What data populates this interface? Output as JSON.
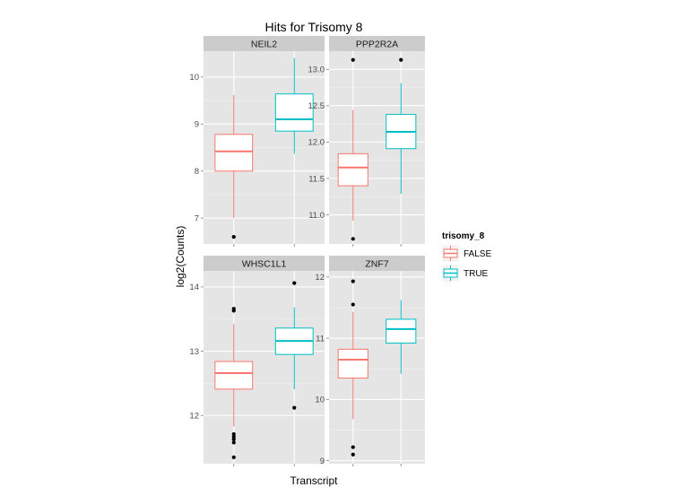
{
  "chart_data": {
    "type": "boxplot",
    "title": "Hits for Trisomy 8",
    "xlabel": "Transcript",
    "ylabel": "log2(Counts)",
    "legend": {
      "title": "trisomy_8",
      "position": "right",
      "entries": [
        {
          "label": "FALSE",
          "color": "#F8766D"
        },
        {
          "label": "TRUE",
          "color": "#00BFC4"
        }
      ]
    },
    "colors": {
      "FALSE": "#F8766D",
      "TRUE": "#00BFC4",
      "panel_bg": "#E5E5E5",
      "strip_bg": "#CCCCCC"
    },
    "grid": true,
    "panels": [
      {
        "name": "NEIL2",
        "ylim": [
          6.45,
          10.55
        ],
        "yticks": [
          7,
          8,
          9,
          10
        ],
        "ytick_labels": [
          "7",
          "8",
          "9",
          "10"
        ],
        "boxes": [
          {
            "group": "FALSE",
            "whisker_low": 7.0,
            "q1": 8.0,
            "median": 8.42,
            "q3": 8.78,
            "whisker_high": 9.62,
            "outliers": [
              6.6
            ]
          },
          {
            "group": "TRUE",
            "whisker_low": 8.37,
            "q1": 8.85,
            "median": 9.1,
            "q3": 9.64,
            "whisker_high": 10.4,
            "outliers": []
          }
        ]
      },
      {
        "name": "PPP2R2A",
        "ylim": [
          10.6,
          13.25
        ],
        "yticks": [
          11.0,
          11.5,
          12.0,
          12.5,
          13.0
        ],
        "ytick_labels": [
          "11.0",
          "11.5",
          "12.0",
          "12.5",
          "13.0"
        ],
        "boxes": [
          {
            "group": "FALSE",
            "whisker_low": 10.92,
            "q1": 11.4,
            "median": 11.65,
            "q3": 11.84,
            "whisker_high": 12.44,
            "outliers": [
              10.67,
              13.13
            ]
          },
          {
            "group": "TRUE",
            "whisker_low": 11.29,
            "q1": 11.91,
            "median": 12.14,
            "q3": 12.38,
            "whisker_high": 12.81,
            "outliers": [
              13.13
            ]
          }
        ]
      },
      {
        "name": "WHSC1L1",
        "ylim": [
          11.25,
          14.25
        ],
        "yticks": [
          12,
          13,
          14
        ],
        "ytick_labels": [
          "12",
          "13",
          "14"
        ],
        "boxes": [
          {
            "group": "FALSE",
            "whisker_low": 11.83,
            "q1": 12.41,
            "median": 12.66,
            "q3": 12.84,
            "whisker_high": 13.42,
            "outliers": [
              11.35,
              11.58,
              11.63,
              11.67,
              11.71,
              13.63,
              13.66
            ]
          },
          {
            "group": "TRUE",
            "whisker_low": 12.41,
            "q1": 12.95,
            "median": 13.16,
            "q3": 13.36,
            "whisker_high": 13.68,
            "outliers": [
              12.12,
              14.06
            ]
          }
        ]
      },
      {
        "name": "ZNF7",
        "ylim": [
          8.95,
          12.1
        ],
        "yticks": [
          9,
          10,
          11,
          12
        ],
        "ytick_labels": [
          "9",
          "10",
          "11",
          "12"
        ],
        "boxes": [
          {
            "group": "FALSE",
            "whisker_low": 9.68,
            "q1": 10.35,
            "median": 10.65,
            "q3": 10.82,
            "whisker_high": 11.43,
            "outliers": [
              9.1,
              9.22,
              11.55,
              11.93
            ]
          },
          {
            "group": "TRUE",
            "whisker_low": 10.42,
            "q1": 10.92,
            "median": 11.15,
            "q3": 11.31,
            "whisker_high": 11.62,
            "outliers": []
          }
        ]
      }
    ]
  }
}
